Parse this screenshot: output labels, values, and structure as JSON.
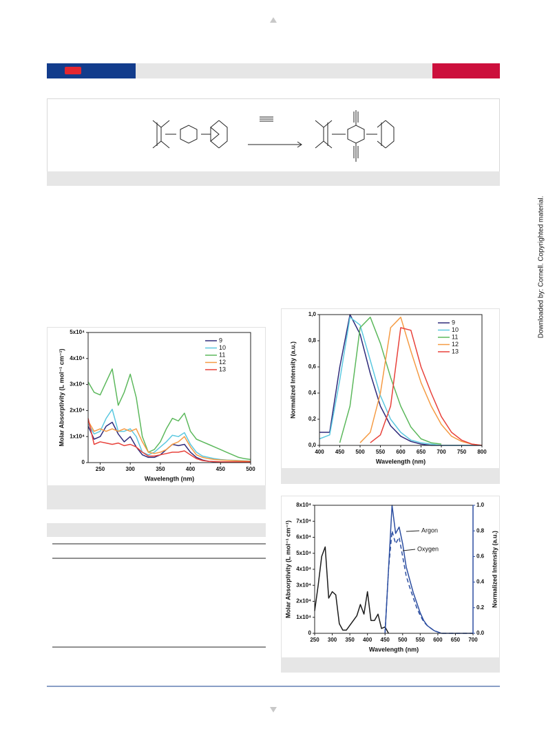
{
  "side_note": "Downloaded by: Cornell. Copyrighted material.",
  "chart_data": [
    {
      "type": "line",
      "x_label": "Wavelength (nm)",
      "y_label": "Molar Absorptivity (L mol⁻¹ cm⁻¹)",
      "xlim": [
        230,
        500
      ],
      "ylim": [
        0,
        50000
      ],
      "xticks": [
        250,
        300,
        350,
        400,
        450,
        500
      ],
      "yticks": [
        0,
        {
          "value": 10000,
          "label": "1x10⁴"
        },
        {
          "value": 20000,
          "label": "2x10⁴"
        },
        {
          "value": 30000,
          "label": "3x10⁴"
        },
        {
          "value": 40000,
          "label": "4x10⁴"
        },
        {
          "value": 50000,
          "label": "5x10⁴"
        }
      ],
      "legend": "upper right",
      "x": [
        230,
        240,
        250,
        260,
        270,
        280,
        290,
        300,
        310,
        320,
        330,
        340,
        350,
        360,
        370,
        380,
        390,
        400,
        410,
        420,
        430,
        440,
        450,
        460,
        470,
        480,
        490,
        500
      ],
      "series": [
        {
          "name": "9",
          "color": "#2e2a7a",
          "values": [
            14000,
            9000,
            10000,
            14000,
            15500,
            11000,
            8000,
            10000,
            6000,
            3000,
            2000,
            2000,
            3000,
            5000,
            7000,
            6500,
            7000,
            4000,
            2000,
            1000,
            500,
            300,
            200,
            100,
            100,
            100,
            100,
            100
          ]
        },
        {
          "name": "10",
          "color": "#5bc8e0",
          "values": [
            15000,
            11000,
            12000,
            17000,
            20500,
            12000,
            12000,
            13000,
            10000,
            4000,
            3000,
            4000,
            6000,
            8000,
            10500,
            10000,
            11500,
            7000,
            4000,
            2500,
            2000,
            1500,
            1200,
            1000,
            900,
            800,
            700,
            600
          ]
        },
        {
          "name": "11",
          "color": "#5cb85c",
          "values": [
            31000,
            27000,
            26000,
            31000,
            36000,
            22000,
            27000,
            34000,
            25000,
            10000,
            4000,
            5000,
            8000,
            13000,
            17000,
            16000,
            19000,
            12000,
            9000,
            8000,
            7000,
            6000,
            5000,
            4000,
            3000,
            2000,
            1500,
            1200
          ]
        },
        {
          "name": "12",
          "color": "#f59a42",
          "values": [
            16000,
            12000,
            13000,
            12000,
            13000,
            12000,
            13000,
            12000,
            13000,
            8000,
            4000,
            3500,
            4000,
            5000,
            7000,
            8000,
            10000,
            6000,
            3000,
            2000,
            1500,
            1200,
            1000,
            900,
            800,
            700,
            600,
            500
          ]
        },
        {
          "name": "13",
          "color": "#e8413a",
          "values": [
            17000,
            7000,
            8000,
            7500,
            7000,
            7500,
            6500,
            7000,
            6000,
            4000,
            2500,
            2500,
            3000,
            3500,
            4000,
            4000,
            4500,
            3000,
            1500,
            800,
            500,
            400,
            300,
            300,
            300,
            300,
            300,
            300
          ]
        }
      ]
    },
    {
      "type": "line",
      "x_label": "Wavelength (nm)",
      "y_label": "Normalized Intensity (a.u.)",
      "xlim": [
        400,
        800
      ],
      "ylim": [
        0,
        1.0
      ],
      "xticks": [
        400,
        450,
        500,
        550,
        600,
        650,
        700,
        750,
        800
      ],
      "yticks": [
        {
          "value": 0,
          "label": "0,0"
        },
        {
          "value": 0.2,
          "label": "0,2"
        },
        {
          "value": 0.4,
          "label": "0,4"
        },
        {
          "value": 0.6,
          "label": "0,6"
        },
        {
          "value": 0.8,
          "label": "0,8"
        },
        {
          "value": 1.0,
          "label": "1,0"
        }
      ],
      "legend": "upper right",
      "x": [
        400,
        425,
        450,
        475,
        500,
        525,
        550,
        575,
        600,
        625,
        650,
        675,
        700,
        725,
        750,
        775,
        800
      ],
      "series": [
        {
          "name": "9",
          "color": "#2e2a7a",
          "values": [
            0.1,
            0.1,
            0.6,
            1.0,
            0.85,
            0.55,
            0.3,
            0.15,
            0.07,
            0.03,
            0.01,
            0,
            0,
            0,
            0,
            0,
            0
          ]
        },
        {
          "name": "10",
          "color": "#5bc8e0",
          "values": [
            0.05,
            0.08,
            0.5,
            0.98,
            0.92,
            0.65,
            0.38,
            0.2,
            0.1,
            0.04,
            0.02,
            0.01,
            0,
            0,
            0,
            0,
            0
          ]
        },
        {
          "name": "11",
          "color": "#5cb85c",
          "values": [
            null,
            null,
            0.02,
            0.3,
            0.9,
            0.98,
            0.78,
            0.52,
            0.3,
            0.14,
            0.05,
            0.02,
            0.01,
            null,
            null,
            null,
            null
          ]
        },
        {
          "name": "12",
          "color": "#f59a42",
          "values": [
            null,
            null,
            null,
            null,
            0.02,
            0.1,
            0.4,
            0.9,
            0.98,
            0.72,
            0.48,
            0.3,
            0.16,
            0.07,
            0.03,
            0.01,
            0
          ]
        },
        {
          "name": "13",
          "color": "#e8413a",
          "values": [
            null,
            null,
            null,
            null,
            null,
            0.02,
            0.08,
            0.3,
            0.9,
            0.88,
            0.6,
            0.4,
            0.22,
            0.1,
            0.04,
            0.01,
            0
          ]
        }
      ]
    },
    {
      "type": "line",
      "x_label": "Wavelength (nm)",
      "y_label": "Molar Absorptivity (L mol⁻¹ cm⁻¹)",
      "y2_label": "Normalized Intensity (a.u.)",
      "xlim": [
        250,
        700
      ],
      "ylim": [
        0,
        80000
      ],
      "y2lim": [
        0,
        1.0
      ],
      "xticks": [
        250,
        300,
        350,
        400,
        450,
        500,
        550,
        600,
        650,
        700
      ],
      "yticks": [
        0,
        {
          "value": 10000,
          "label": "1x10⁴"
        },
        {
          "value": 20000,
          "label": "2x10⁴"
        },
        {
          "value": 30000,
          "label": "3x10⁴"
        },
        {
          "value": 40000,
          "label": "4x10⁴"
        },
        {
          "value": 50000,
          "label": "5x10⁴"
        },
        {
          "value": 60000,
          "label": "6x10⁴"
        },
        {
          "value": 70000,
          "label": "7x10⁴"
        },
        {
          "value": 80000,
          "label": "8x10⁴"
        }
      ],
      "y2ticks": [
        {
          "value": 0,
          "label": "0.0"
        },
        {
          "value": 0.2,
          "label": "0.2"
        },
        {
          "value": 0.4,
          "label": "0.4"
        },
        {
          "value": 0.6,
          "label": "0.6"
        },
        {
          "value": 0.8,
          "label": "0.8"
        },
        {
          "value": 1.0,
          "label": "1.0"
        }
      ],
      "y2_color": "#2b4da0",
      "x": [
        250,
        260,
        270,
        280,
        290,
        300,
        310,
        320,
        330,
        340,
        350,
        360,
        370,
        380,
        390,
        400,
        410,
        420,
        430,
        440,
        450,
        460,
        470,
        480,
        490,
        500,
        510,
        520,
        530,
        540,
        550,
        560,
        570,
        580,
        590,
        600,
        610,
        620,
        630,
        640,
        650,
        660,
        670,
        680,
        690,
        700
      ],
      "series": [
        {
          "color": "#1a1a1a",
          "values": [
            14000,
            30000,
            48000,
            54000,
            22000,
            26000,
            24000,
            6000,
            2000,
            2000,
            5000,
            8000,
            11000,
            18000,
            12000,
            26000,
            8000,
            8000,
            12000,
            3000,
            4000,
            0,
            null,
            null,
            null,
            null,
            null,
            null,
            null,
            null,
            null,
            null,
            null,
            null,
            null,
            null,
            null,
            null,
            null,
            null,
            null,
            null,
            null,
            null,
            null,
            null
          ]
        },
        {
          "name": "Argon",
          "color": "#2b4da0",
          "axis": "y2",
          "values": [
            null,
            null,
            null,
            null,
            null,
            null,
            null,
            null,
            null,
            null,
            null,
            null,
            null,
            null,
            null,
            null,
            null,
            null,
            null,
            null,
            0,
            0.5,
            1.0,
            0.78,
            0.83,
            0.7,
            0.52,
            0.42,
            0.32,
            0.24,
            0.16,
            0.1,
            0.06,
            0.04,
            0.02,
            0.01,
            0,
            0,
            0,
            0,
            0,
            0,
            0,
            0,
            0,
            0
          ]
        },
        {
          "name": "Oxygen",
          "color": "#2b4da0",
          "axis": "y2",
          "dashed": true,
          "values": [
            null,
            null,
            null,
            null,
            null,
            null,
            null,
            null,
            null,
            null,
            null,
            null,
            null,
            null,
            null,
            null,
            null,
            null,
            null,
            null,
            0,
            0.5,
            0.8,
            0.7,
            0.75,
            0.6,
            0.45,
            0.36,
            0.28,
            0.2,
            0.14,
            0.09,
            0.06,
            0.04,
            0.02,
            0.01,
            0,
            0,
            0,
            0,
            0,
            0,
            0,
            0,
            0,
            0
          ]
        }
      ]
    }
  ]
}
